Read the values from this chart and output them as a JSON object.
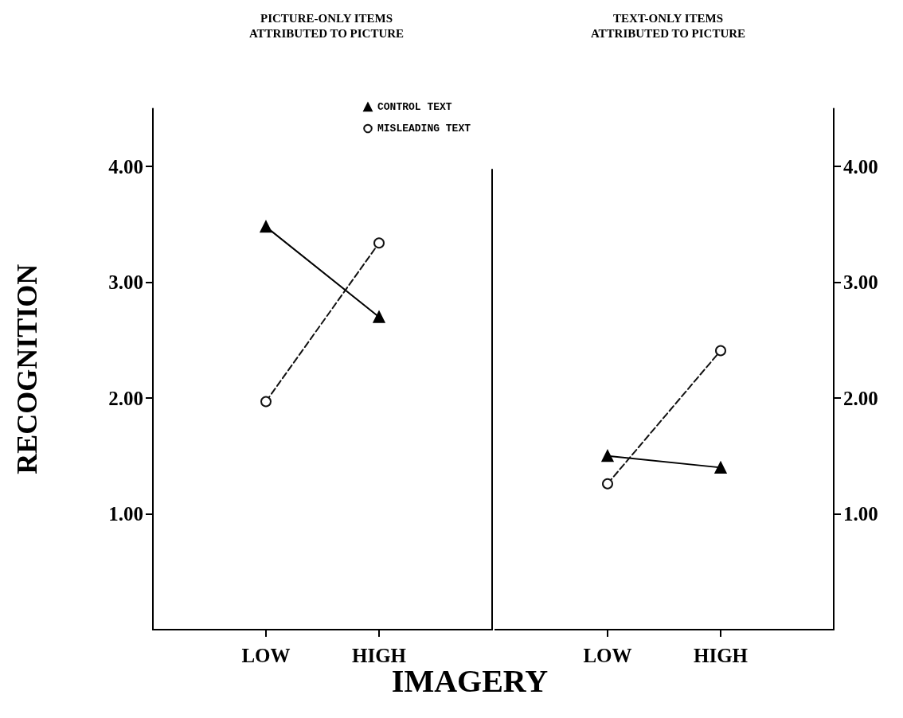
{
  "chart_data": [
    {
      "type": "line",
      "title": "PICTURE-ONLY ITEMS\nATTRIBUTED TO PICTURE",
      "xlabel": "IMAGERY",
      "ylabel": "RECOGNITION",
      "categories": [
        "LOW",
        "HIGH"
      ],
      "series": [
        {
          "name": "CONTROL TEXT",
          "color": "#000000",
          "values": [
            3.48,
            2.7
          ],
          "marker": "triangle",
          "line_style": "solid"
        },
        {
          "name": "MISLEADING TEXT",
          "color": "#111111",
          "values": [
            1.97,
            3.34
          ],
          "marker": "circle",
          "line_style": "dashed"
        }
      ],
      "ylim": [
        0,
        4.5
      ],
      "yticks": [
        {
          "value": 1,
          "label": "1.00"
        },
        {
          "value": 2,
          "label": "2.00"
        },
        {
          "value": 3,
          "label": "3.00"
        },
        {
          "value": 4,
          "label": "4.00"
        }
      ],
      "grid": false,
      "legend": "top right"
    },
    {
      "type": "line",
      "title": "TEXT-ONLY ITEMS\nATTRIBUTED TO PICTURE",
      "categories": [
        "LOW",
        "HIGH"
      ],
      "series": [
        {
          "color": "#000000",
          "values": [
            1.5,
            1.4
          ],
          "marker": "triangle",
          "line_style": "solid"
        },
        {
          "color": "#111111",
          "values": [
            1.26,
            2.41
          ],
          "marker": "circle",
          "line_style": "dashed"
        }
      ],
      "ylim": [
        0,
        4.5
      ],
      "yticks": [
        {
          "value": 1,
          "label": "1.00"
        },
        {
          "value": 2,
          "label": "2.00"
        },
        {
          "value": 3,
          "label": "3.00"
        },
        {
          "value": 4,
          "label": "4.00"
        }
      ],
      "grid": false
    }
  ]
}
